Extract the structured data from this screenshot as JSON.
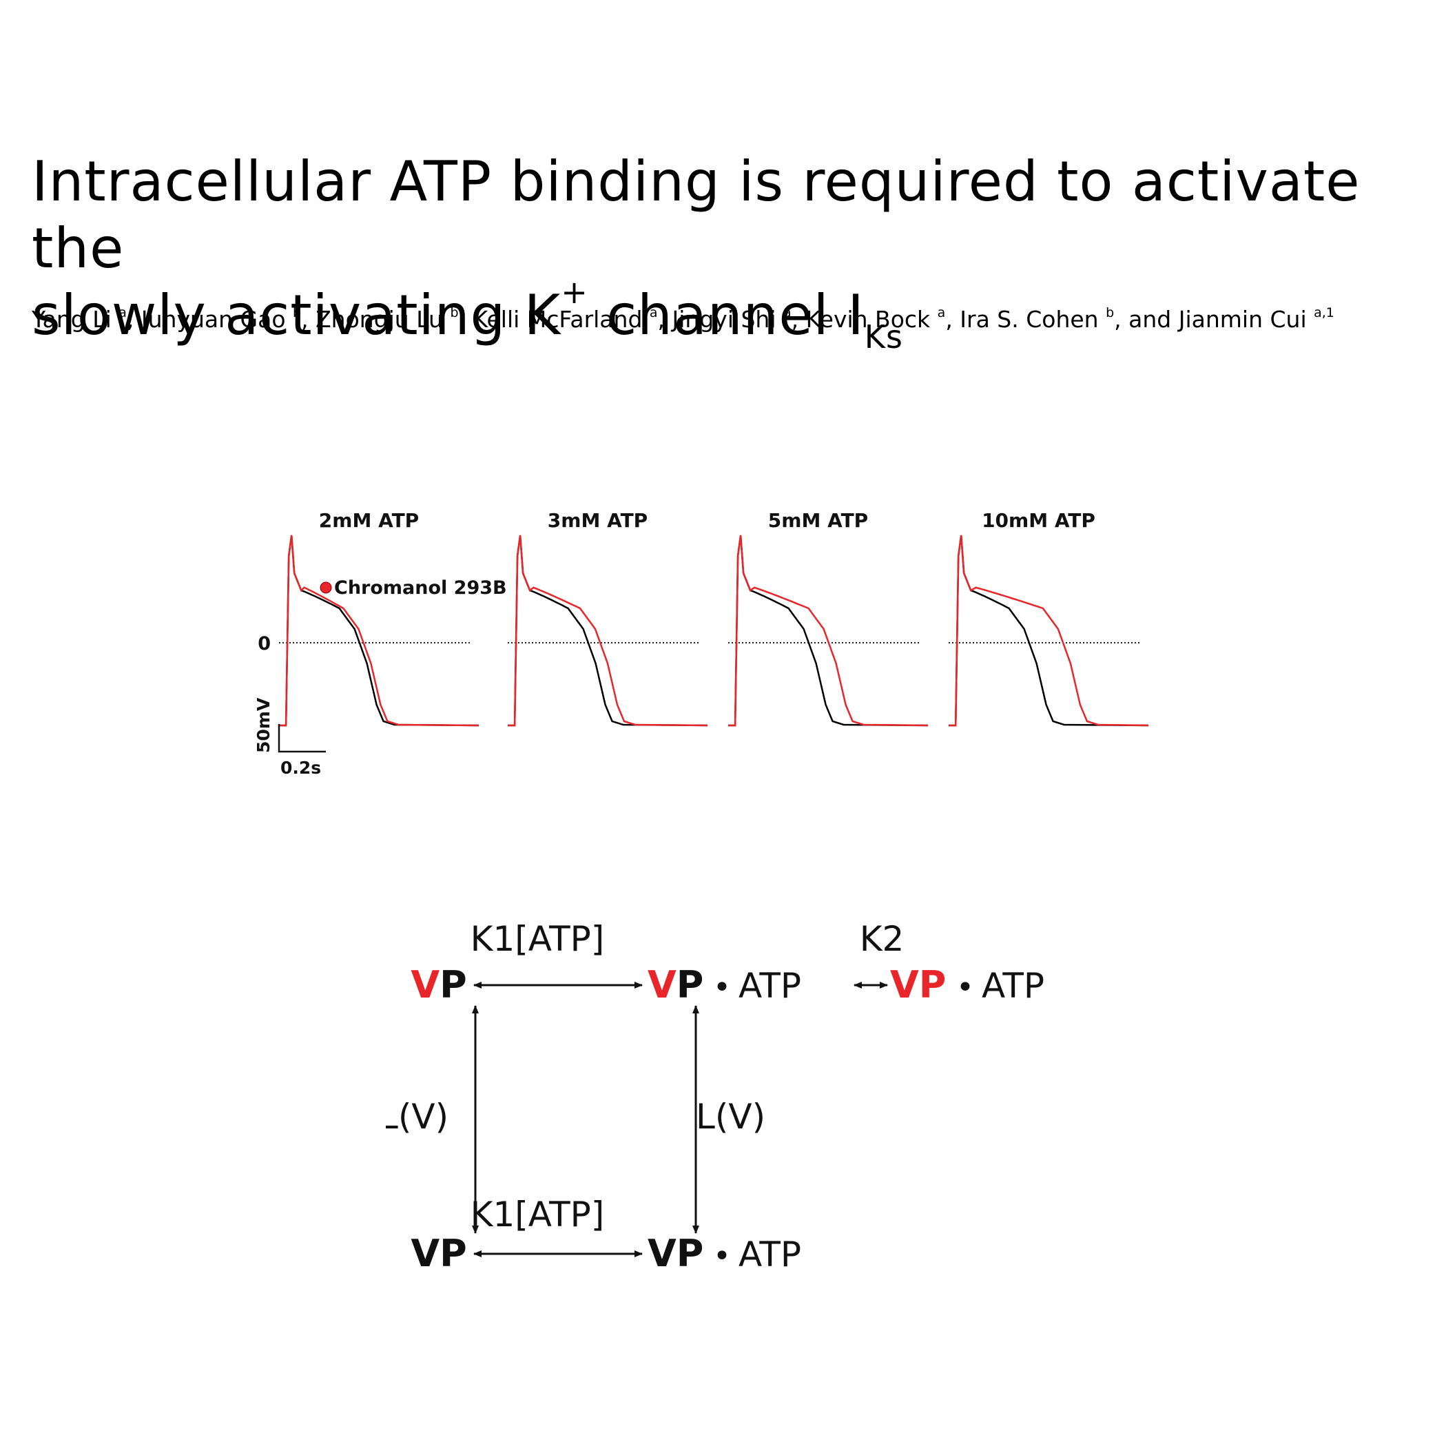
{
  "title": {
    "line1": "Intracellular ATP binding is required to activate the",
    "line2_main": "slowly activating K",
    "line2_sup": "+",
    "line2_rest": " channel I",
    "line2_sub": "Ks"
  },
  "authors": [
    {
      "name": "Yang Li",
      "aff": "a",
      "sep": ", "
    },
    {
      "name": "Junyuan Gao",
      "aff": "b",
      "sep": ", "
    },
    {
      "name": "Zhongju Lu",
      "aff": "b",
      "sep": ", "
    },
    {
      "name": "Kelli McFarland",
      "aff": "a",
      "sep": ", "
    },
    {
      "name": "Jingyi Shi",
      "aff": "a",
      "sep": ", "
    },
    {
      "name": "Kevin Bock",
      "aff": "a",
      "sep": ", "
    },
    {
      "name": "Ira S. Cohen",
      "aff": "b",
      "sep": ", and "
    },
    {
      "name": "Jianmin Cui",
      "aff": "a,1",
      "sep": ""
    }
  ],
  "action_potentials": {
    "panels": [
      {
        "label": "2mM ATP",
        "red_shift": 0.02
      },
      {
        "label": "3mM ATP",
        "red_shift": 0.06
      },
      {
        "label": "5mM ATP",
        "red_shift": 0.1
      },
      {
        "label": "10mM ATP",
        "red_shift": 0.17
      }
    ],
    "legend": "Chromanol 293B",
    "zero_label": "0",
    "scale_y": "50mV",
    "scale_x": "0.2s",
    "colors": {
      "control": "#000000",
      "chromanol": "#e8262a"
    }
  },
  "scheme": {
    "state_vp": "VP",
    "v_letter": "V",
    "p_letter": "P",
    "dot": "•",
    "atp": "ATP",
    "k1_label": "K1[ATP]",
    "k2_label": "K2",
    "l_label": "L(V)",
    "colors": {
      "voltage_sensor_activated": "#e8262a",
      "default": "#111111"
    }
  }
}
